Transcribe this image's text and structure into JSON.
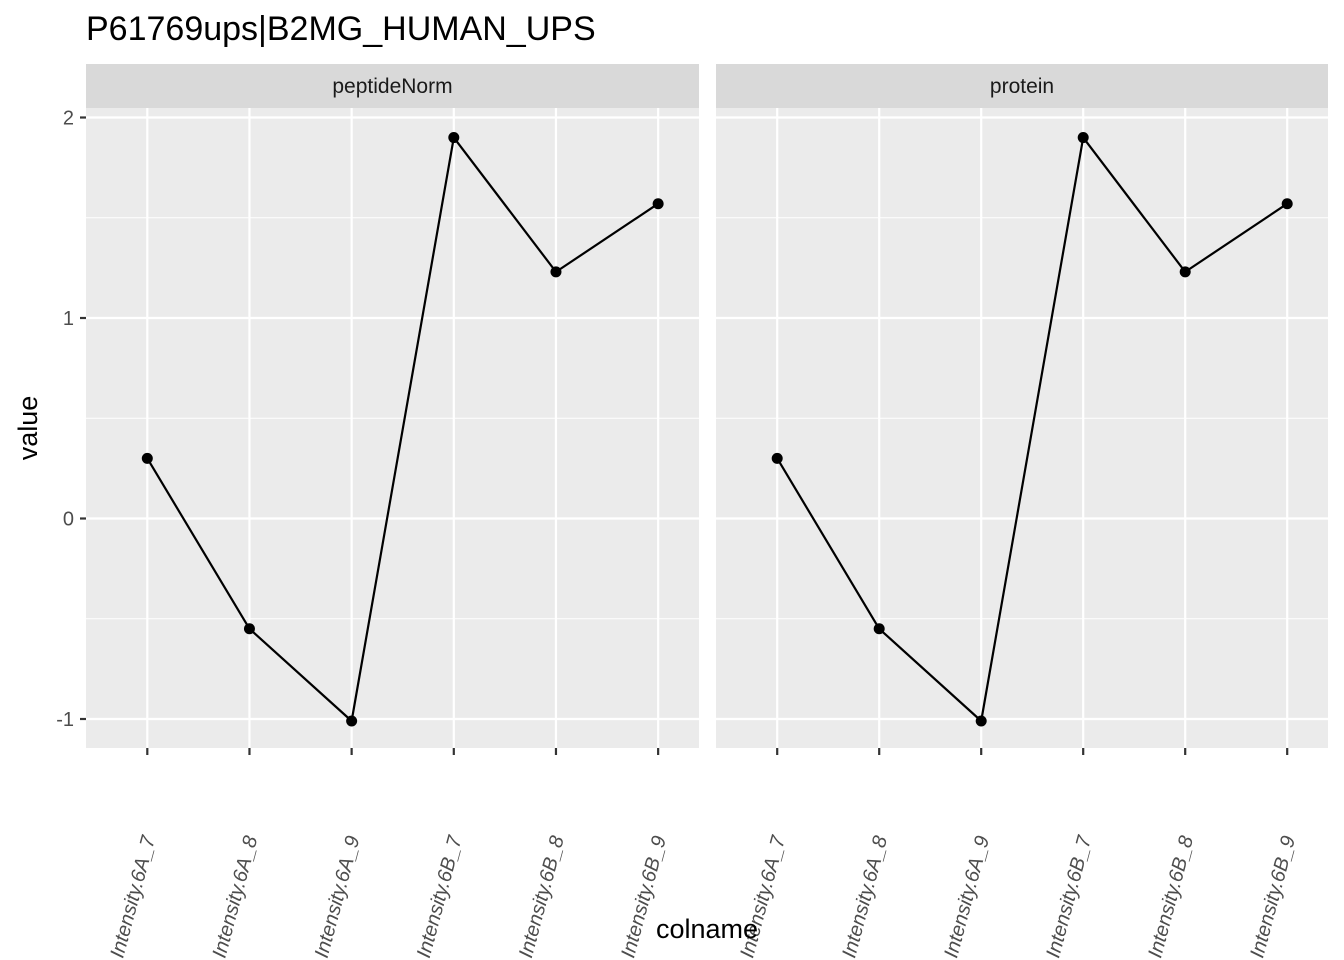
{
  "chart_data": {
    "type": "line",
    "title": "P61769ups|B2MG_HUMAN_UPS",
    "xlabel": "colname",
    "ylabel": "value",
    "ylim": [
      -1.15,
      2.05
    ],
    "y_ticks": [
      -1,
      0,
      1,
      2
    ],
    "y_tick_labels": [
      "-1",
      "0",
      "1",
      "2"
    ],
    "categories": [
      "Intensity.6A_7",
      "Intensity.6A_8",
      "Intensity.6A_9",
      "Intensity.6B_7",
      "Intensity.6B_8",
      "Intensity.6B_9"
    ],
    "grid": true,
    "facets": [
      {
        "name": "peptideNorm",
        "values": [
          0.3,
          -0.55,
          -1.01,
          1.9,
          1.23,
          1.57
        ]
      },
      {
        "name": "protein",
        "values": [
          0.3,
          -0.55,
          -1.01,
          1.9,
          1.23,
          1.57
        ]
      }
    ],
    "colors": {
      "panel_background": "#ebebeb",
      "strip_background": "#d9d9d9",
      "grid": "#ffffff",
      "line": "#000000",
      "point": "#000000"
    }
  }
}
